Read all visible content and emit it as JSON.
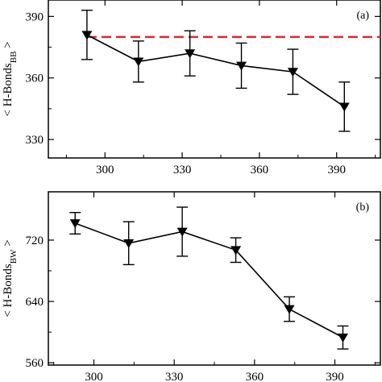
{
  "chart_data": [
    {
      "type": "line",
      "panel_label": "(a)",
      "ylabel_main": "< H-Bonds",
      "ylabel_sub": "BB",
      "ylabel_tail": " >",
      "xlim": [
        278,
        407
      ],
      "ylim": [
        321,
        398
      ],
      "xticks": [
        300,
        330,
        360,
        390
      ],
      "yticks": [
        330,
        360,
        390
      ],
      "grid": false,
      "series": [
        {
          "marker": "triangle-down",
          "color": "#000000",
          "x": [
            293,
            313,
            333,
            353,
            373,
            393
          ],
          "y": [
            381,
            368,
            372,
            366,
            363,
            346
          ],
          "err_low": [
            12,
            10,
            11,
            11,
            11,
            12
          ],
          "err_high": [
            12,
            10,
            11,
            11,
            11,
            12
          ]
        }
      ],
      "reference_line": {
        "y": 380,
        "color": "#e8242b",
        "style": "dashed"
      }
    },
    {
      "type": "line",
      "panel_label": "(b)",
      "ylabel_main": "< H-Bonds",
      "ylabel_sub": "BW",
      "ylabel_tail": " >",
      "xlim": [
        283,
        407
      ],
      "ylim": [
        557,
        783
      ],
      "xticks": [
        300,
        330,
        360,
        390
      ],
      "yticks": [
        560,
        640,
        720
      ],
      "grid": false,
      "series": [
        {
          "marker": "triangle-down",
          "color": "#000000",
          "x": [
            293,
            313,
            333,
            353,
            373,
            393
          ],
          "y": [
            742,
            716,
            731,
            707,
            630,
            593
          ],
          "err_low": [
            14,
            28,
            32,
            16,
            16,
            15
          ],
          "err_high": [
            14,
            28,
            32,
            16,
            16,
            15
          ]
        }
      ]
    }
  ]
}
